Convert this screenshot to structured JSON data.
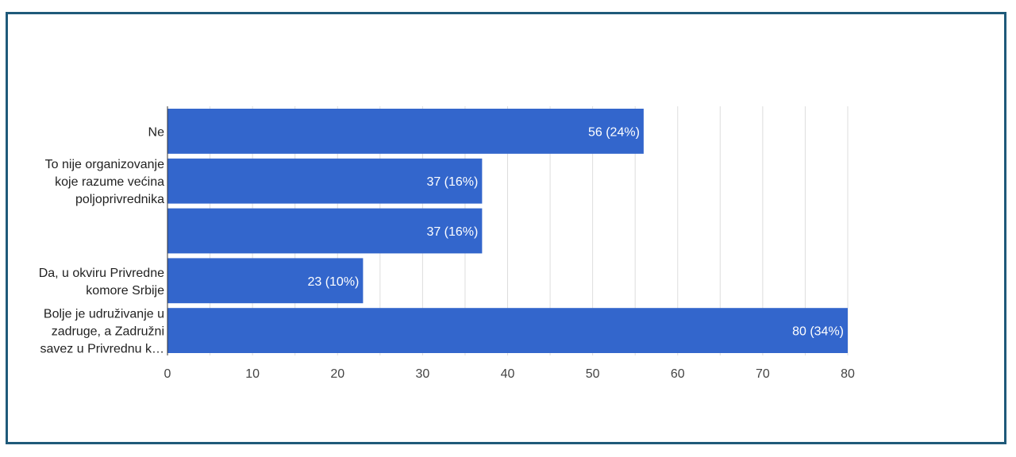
{
  "chart_data": {
    "type": "bar",
    "orientation": "horizontal",
    "categories": [
      [
        "Ne"
      ],
      [
        "To nije organizovanje",
        "koje razume većina",
        "poljoprivrednika"
      ],
      [],
      [
        "Da, u okviru Privredne",
        "komore Srbije"
      ],
      [
        "Bolje je udruživanje u",
        "zadruge, a Zadružni",
        "savez u Privrednu k…"
      ]
    ],
    "values": [
      56,
      37,
      37,
      23,
      80
    ],
    "data_labels": [
      "56 (24%)",
      "37 (16%)",
      "37 (16%)",
      "23 (10%)",
      "80 (34%)"
    ],
    "xlim": [
      0,
      80
    ],
    "xticks": [
      0,
      10,
      20,
      30,
      40,
      50,
      60,
      70,
      80
    ],
    "grid": true,
    "colors": {
      "bar": "#3366cc",
      "grid": "#dddddd",
      "axis": "#333333",
      "frame": "#1f5a7a"
    }
  }
}
